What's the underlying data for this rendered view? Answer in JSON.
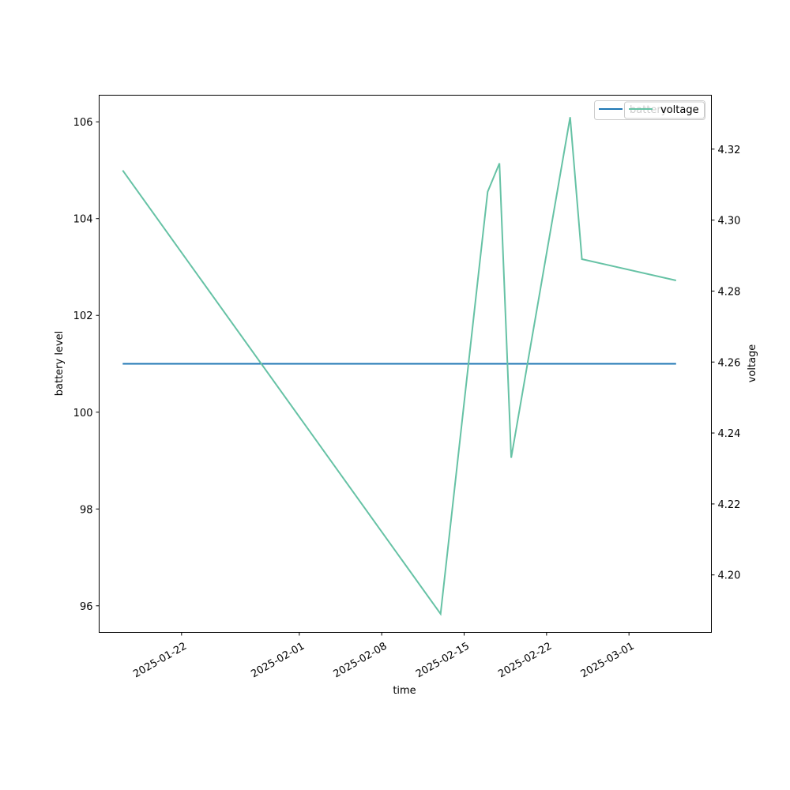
{
  "chart_data": {
    "type": "line",
    "title": "",
    "xlabel": "time",
    "ylabel": "battery level",
    "y2label": "voltage",
    "x_ticks": [
      "2025-01-22",
      "2025-02-01",
      "2025-02-08",
      "2025-02-15",
      "2025-02-22",
      "2025-03-01"
    ],
    "y_ticks": [
      96,
      98,
      100,
      102,
      104,
      106
    ],
    "y2_ticks": [
      "4.20",
      "4.22",
      "4.24",
      "4.26",
      "4.28",
      "4.30",
      "4.32"
    ],
    "xlim": [
      "2025-01-15",
      "2025-03-08"
    ],
    "ylim": [
      95.45,
      106.55
    ],
    "y2lim": [
      4.1838,
      4.3352
    ],
    "legend_position": "top-right",
    "grid": false,
    "series": [
      {
        "name": "battery",
        "axis": "left",
        "color": "#1f77b4",
        "x": [
          "2025-01-17",
          "2025-03-05"
        ],
        "values": [
          101,
          101
        ]
      },
      {
        "name": "voltage",
        "axis": "right",
        "color": "#66c2a5",
        "x": [
          "2025-01-17",
          "2025-02-13",
          "2025-02-17",
          "2025-02-18",
          "2025-02-19",
          "2025-02-24",
          "2025-02-25",
          "2025-03-05"
        ],
        "values": [
          4.314,
          4.189,
          4.308,
          4.316,
          4.233,
          4.329,
          4.289,
          4.283
        ]
      }
    ]
  }
}
